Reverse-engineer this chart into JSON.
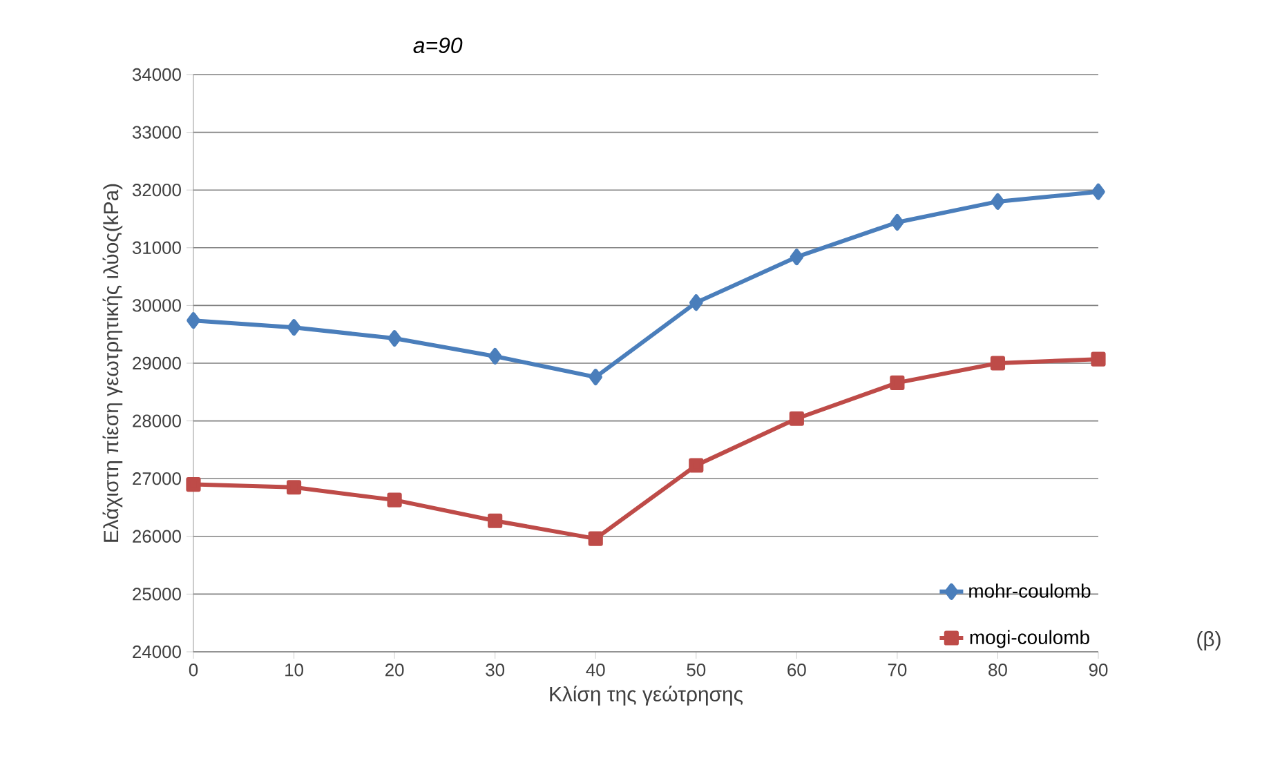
{
  "chart_data": {
    "type": "line",
    "title": "a=90",
    "xlabel": "Κλίση της γεώτρησης",
    "ylabel": "Ελάχιστη πίεση γεωτρητικής ιλύος(kPa)",
    "x": [
      0,
      10,
      20,
      30,
      40,
      50,
      60,
      70,
      80,
      90
    ],
    "series": [
      {
        "name": "mohr-coulomb",
        "color": "#4a7ebb",
        "marker": "diamond",
        "values": [
          29740,
          29620,
          29430,
          29120,
          28760,
          30050,
          30840,
          31440,
          31800,
          31970
        ]
      },
      {
        "name": "mogi-coulomb",
        "color": "#be4b48",
        "marker": "square",
        "values": [
          26900,
          26850,
          26630,
          26270,
          25960,
          27230,
          28040,
          28660,
          29000,
          29070
        ]
      }
    ],
    "xlim": [
      0,
      90
    ],
    "xticks": [
      0,
      10,
      20,
      30,
      40,
      50,
      60,
      70,
      80,
      90
    ],
    "ylim": [
      24000,
      34000
    ],
    "yticks": [
      24000,
      25000,
      26000,
      27000,
      28000,
      29000,
      30000,
      31000,
      32000,
      33000,
      34000
    ],
    "grid": "y",
    "legend": "bottom right",
    "line_style": "solid",
    "annotations": [
      "(β)"
    ]
  }
}
